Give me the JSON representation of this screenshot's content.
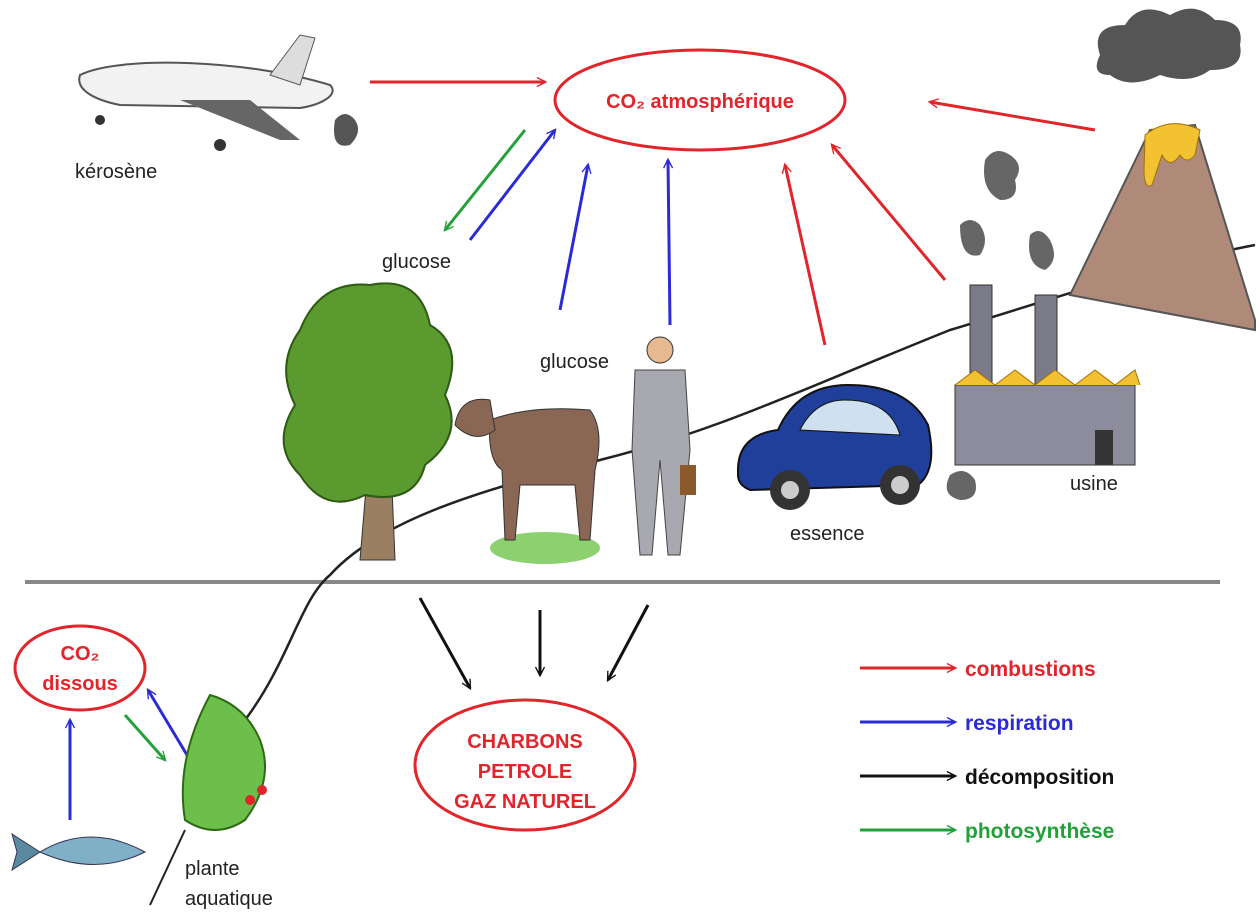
{
  "atmosphere": "CO₂ atmosphérique",
  "labels": {
    "plane": "kérosène",
    "glucose_plants": "glucose",
    "glucose_animals": "glucose",
    "car": "essence",
    "factory": "usine"
  },
  "dissolved": [
    "CO₂",
    "dissous"
  ],
  "aquatic_plant": [
    "plante",
    "aquatique"
  ],
  "fossil": [
    "CHARBONS",
    "PETROLE",
    "GAZ NATUREL"
  ],
  "legend": [
    "combustions",
    "respiration",
    "décomposition",
    "photosynthèse"
  ]
}
